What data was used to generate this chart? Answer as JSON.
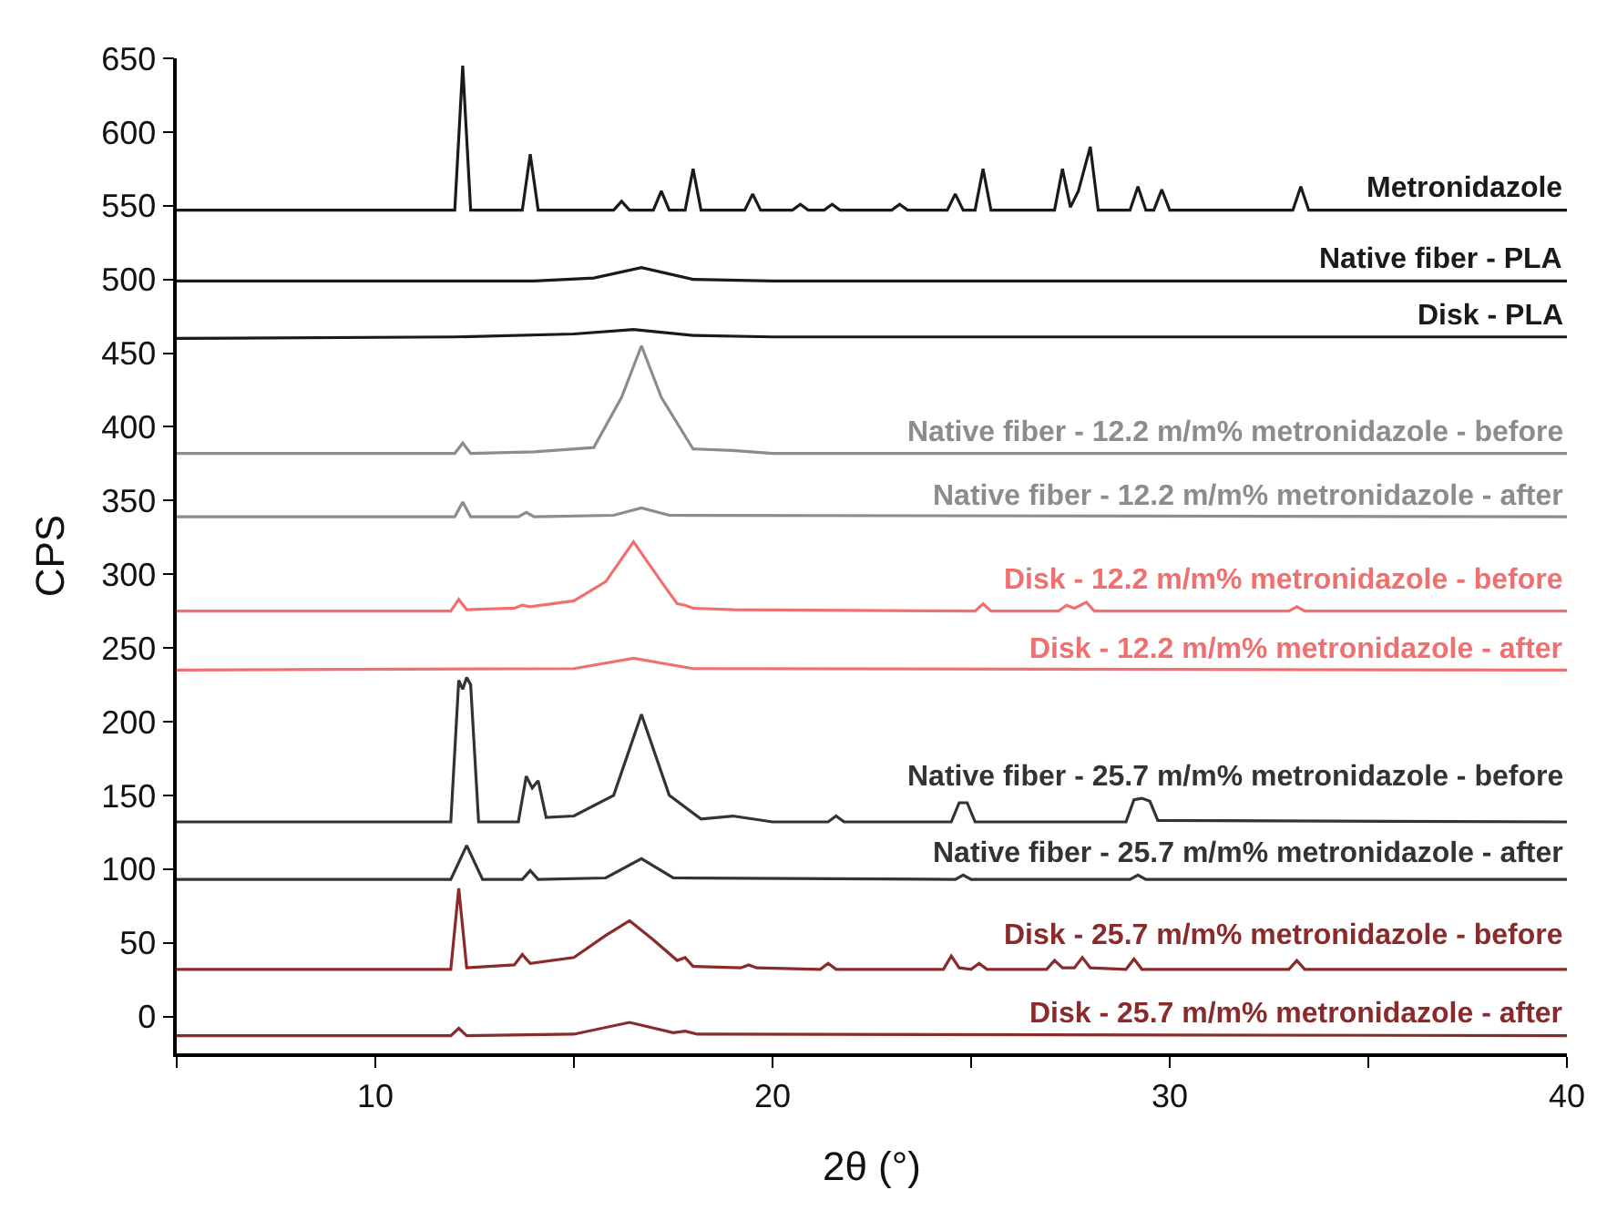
{
  "chart_data": {
    "type": "line",
    "xlabel": "2θ (°)",
    "ylabel": "CPS",
    "xlim": [
      5,
      40
    ],
    "ylim": [
      -25,
      650
    ],
    "xticks": [
      {
        "value": 5,
        "label": null
      },
      10,
      {
        "value": 15,
        "label": null
      },
      20,
      {
        "value": 25,
        "label": null
      },
      30,
      {
        "value": 35,
        "label": null
      },
      40
    ],
    "yticks": [
      0,
      50,
      100,
      150,
      200,
      250,
      300,
      350,
      400,
      450,
      500,
      550,
      600,
      650
    ],
    "legend": false,
    "marker": "none",
    "line_style": "solid",
    "series": [
      {
        "name": "Metronidazole",
        "color": "#1a1a1a",
        "x": [
          5,
          12.0,
          12.2,
          12.4,
          13.7,
          13.9,
          14.1,
          16.0,
          16.2,
          16.4,
          17.0,
          17.2,
          17.4,
          17.8,
          18.0,
          18.2,
          19.3,
          19.5,
          19.7,
          20.5,
          20.7,
          20.9,
          21.3,
          21.5,
          21.7,
          23.0,
          23.2,
          23.4,
          24.4,
          24.6,
          24.8,
          25.1,
          25.3,
          25.5,
          27.1,
          27.3,
          27.5,
          27.7,
          28.0,
          28.2,
          29.0,
          29.2,
          29.4,
          29.6,
          29.8,
          30.0,
          33.1,
          33.3,
          33.5,
          40
        ],
        "values": [
          547,
          547,
          645,
          547,
          547,
          585,
          547,
          547,
          553,
          547,
          547,
          560,
          547,
          547,
          575,
          547,
          547,
          558,
          547,
          547,
          551,
          547,
          547,
          551,
          547,
          547,
          551,
          547,
          547,
          558,
          547,
          547,
          575,
          547,
          547,
          575,
          549,
          560,
          590,
          547,
          547,
          563,
          547,
          547,
          561,
          547,
          547,
          563,
          547,
          547
        ]
      },
      {
        "name": "Native fiber - PLA",
        "color": "#1a1a1a",
        "x": [
          5,
          14,
          15.5,
          16.7,
          18,
          20,
          40
        ],
        "values": [
          499,
          499,
          501,
          508,
          500,
          499,
          499
        ]
      },
      {
        "name": "Disk - PLA",
        "color": "#1a1a1a",
        "x": [
          5,
          12,
          15,
          16.5,
          18,
          20,
          40
        ],
        "values": [
          460,
          461,
          463,
          466,
          462,
          461,
          461
        ]
      },
      {
        "name": "Native fiber - 12.2 m/m% metronidazole - before",
        "color": "#8c8c8c",
        "x": [
          5,
          12.0,
          12.2,
          12.4,
          14,
          15.5,
          16.2,
          16.7,
          17.2,
          18,
          19,
          20,
          40
        ],
        "values": [
          382,
          382,
          389,
          382,
          383,
          386,
          420,
          455,
          420,
          385,
          384,
          382,
          382
        ]
      },
      {
        "name": "Native fiber - 12.2 m/m% metronidazole - after",
        "color": "#8c8c8c",
        "x": [
          5,
          12.0,
          12.2,
          12.4,
          13.6,
          13.8,
          14.0,
          16.0,
          16.7,
          17.4,
          40
        ],
        "values": [
          339,
          339,
          349,
          339,
          339,
          342,
          339,
          340,
          345,
          340,
          339
        ]
      },
      {
        "name": "Disk - 12.2 m/m% metronidazole - before",
        "color": "#f07070",
        "x": [
          5,
          11.9,
          12.1,
          12.3,
          13.5,
          13.7,
          13.9,
          15.0,
          15.8,
          16.5,
          17.2,
          17.6,
          17.8,
          18.0,
          19,
          25.1,
          25.3,
          25.5,
          27.2,
          27.4,
          27.6,
          27.9,
          28.1,
          33.0,
          33.2,
          33.4,
          40
        ],
        "values": [
          275,
          275,
          283,
          276,
          277,
          279,
          278,
          282,
          295,
          322,
          295,
          280,
          279,
          277,
          276,
          275,
          280,
          275,
          275,
          279,
          277,
          281,
          275,
          275,
          278,
          275,
          275
        ]
      },
      {
        "name": "Disk - 12.2 m/m% metronidazole - after",
        "color": "#f07070",
        "x": [
          5,
          15,
          16.5,
          18,
          40
        ],
        "values": [
          235,
          236,
          243,
          236,
          235
        ]
      },
      {
        "name": "Native fiber - 25.7 m/m% metronidazole - before",
        "color": "#333333",
        "x": [
          5,
          11.9,
          12.1,
          12.2,
          12.3,
          12.4,
          12.6,
          13.6,
          13.8,
          13.95,
          14.1,
          14.3,
          15.0,
          16.0,
          16.7,
          17.4,
          18.2,
          19.0,
          20,
          21.4,
          21.6,
          21.8,
          24.5,
          24.7,
          24.9,
          25.1,
          28.9,
          29.1,
          29.3,
          29.5,
          29.7,
          40
        ],
        "values": [
          132,
          132,
          228,
          222,
          230,
          225,
          132,
          132,
          163,
          155,
          160,
          135,
          136,
          150,
          205,
          150,
          134,
          136,
          132,
          132,
          136,
          132,
          132,
          145,
          145,
          132,
          132,
          147,
          148,
          146,
          133,
          132
        ]
      },
      {
        "name": "Native fiber - 25.7 m/m% metronidazole - after",
        "color": "#333333",
        "x": [
          5,
          11.9,
          12.3,
          12.7,
          13.7,
          13.9,
          14.1,
          15.8,
          16.7,
          17.5,
          24.6,
          24.8,
          25.0,
          29.0,
          29.2,
          29.4,
          40
        ],
        "values": [
          93,
          93,
          116,
          93,
          93,
          99,
          93,
          94,
          107,
          94,
          93,
          96,
          93,
          93,
          96,
          93,
          93
        ]
      },
      {
        "name": "Disk - 25.7 m/m% metronidazole - before",
        "color": "#8b2a2a",
        "x": [
          5,
          11.9,
          12.1,
          12.3,
          13.5,
          13.7,
          13.9,
          15.0,
          15.8,
          16.4,
          17.0,
          17.6,
          17.8,
          18.0,
          19.2,
          19.4,
          19.6,
          21.2,
          21.4,
          21.6,
          24.3,
          24.5,
          24.7,
          25.0,
          25.2,
          25.4,
          26.9,
          27.1,
          27.3,
          27.6,
          27.8,
          28.0,
          28.9,
          29.1,
          29.3,
          33.0,
          33.2,
          33.4,
          40
        ],
        "values": [
          32,
          32,
          87,
          33,
          35,
          42,
          36,
          40,
          55,
          65,
          52,
          38,
          40,
          34,
          33,
          35,
          33,
          32,
          36,
          32,
          32,
          41,
          33,
          32,
          36,
          32,
          32,
          38,
          33,
          33,
          40,
          33,
          32,
          39,
          32,
          32,
          38,
          32,
          32
        ]
      },
      {
        "name": "Disk - 25.7 m/m% metronidazole - after",
        "color": "#8b2a2a",
        "x": [
          5,
          11.9,
          12.1,
          12.3,
          15,
          16.4,
          17.5,
          17.8,
          18.1,
          40
        ],
        "values": [
          -13,
          -13,
          -8,
          -13,
          -12,
          -4,
          -11,
          -10,
          -12,
          -13
        ]
      }
    ]
  }
}
